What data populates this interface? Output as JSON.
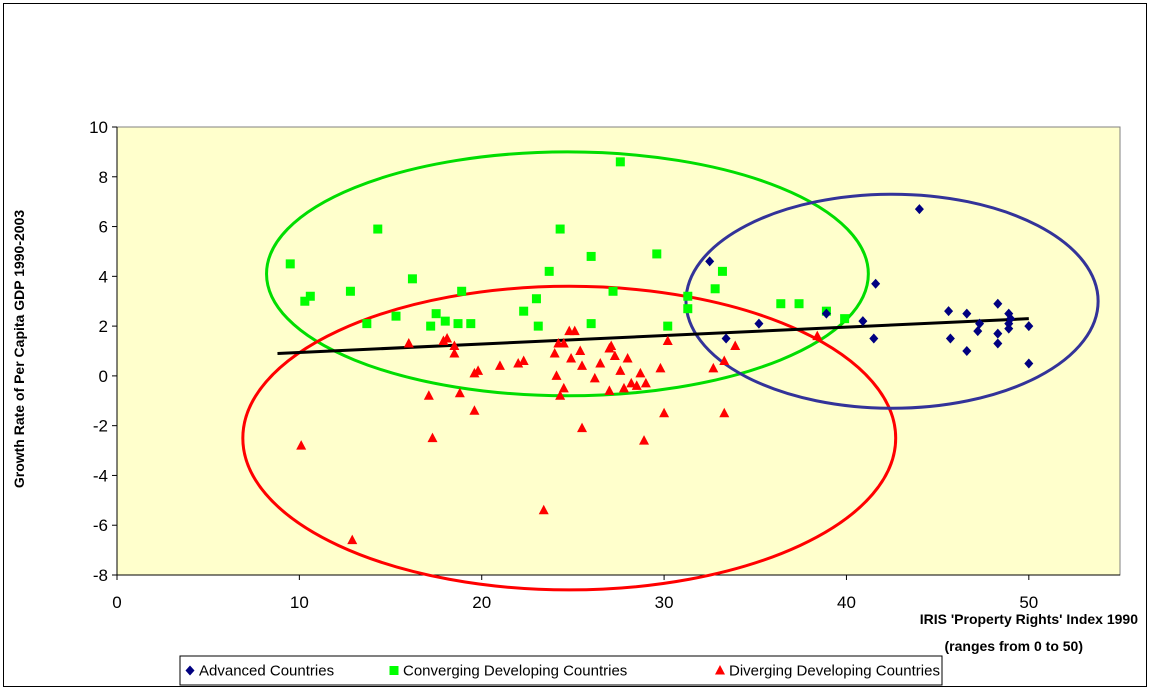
{
  "chart_data": {
    "type": "scatter",
    "title": "",
    "xlabel_lines": [
      "IRIS 'Property Rights' Index 1990",
      "(ranges from 0 to 50)"
    ],
    "ylabel": "Growth Rate of Per Capita GDP 1990-2003",
    "xlim": [
      0,
      55
    ],
    "ylim": [
      -8,
      10
    ],
    "x_ticks": [
      0,
      10,
      20,
      30,
      40,
      50
    ],
    "y_ticks": [
      -8,
      -6,
      -4,
      -2,
      0,
      2,
      4,
      6,
      8,
      10
    ],
    "plot_background": "#FFFFCC",
    "grid": false,
    "legend_position": "bottom",
    "series": [
      {
        "name": "Advanced Countries",
        "marker": "diamond",
        "color": "#000080",
        "points": [
          [
            32.5,
            4.6
          ],
          [
            33.4,
            1.5
          ],
          [
            35.2,
            2.1
          ],
          [
            38.9,
            2.5
          ],
          [
            40.9,
            2.2
          ],
          [
            41.5,
            1.5
          ],
          [
            41.6,
            3.7
          ],
          [
            44.0,
            6.7
          ],
          [
            45.6,
            2.6
          ],
          [
            45.7,
            1.5
          ],
          [
            46.6,
            2.5
          ],
          [
            46.6,
            1.0
          ],
          [
            47.2,
            1.8
          ],
          [
            47.3,
            2.1
          ],
          [
            48.3,
            1.3
          ],
          [
            48.3,
            1.7
          ],
          [
            48.3,
            2.9
          ],
          [
            48.9,
            2.5
          ],
          [
            48.9,
            1.9
          ],
          [
            48.9,
            2.1
          ],
          [
            49.0,
            2.3
          ],
          [
            50.0,
            2.0
          ],
          [
            50.0,
            0.5
          ]
        ]
      },
      {
        "name": "Converging Developing Countries",
        "marker": "square",
        "color": "#00FF00",
        "points": [
          [
            9.5,
            4.5
          ],
          [
            10.3,
            3.0
          ],
          [
            10.6,
            3.2
          ],
          [
            12.8,
            3.4
          ],
          [
            13.7,
            2.1
          ],
          [
            14.3,
            5.9
          ],
          [
            15.3,
            2.4
          ],
          [
            16.2,
            3.9
          ],
          [
            17.2,
            2.0
          ],
          [
            17.5,
            2.5
          ],
          [
            18.0,
            2.2
          ],
          [
            18.7,
            2.1
          ],
          [
            18.9,
            3.4
          ],
          [
            19.4,
            2.1
          ],
          [
            22.3,
            2.6
          ],
          [
            23.0,
            3.1
          ],
          [
            23.1,
            2.0
          ],
          [
            23.7,
            4.2
          ],
          [
            24.3,
            5.9
          ],
          [
            26.0,
            4.8
          ],
          [
            26.0,
            2.1
          ],
          [
            27.2,
            3.4
          ],
          [
            27.6,
            8.6
          ],
          [
            29.6,
            4.9
          ],
          [
            30.2,
            2.0
          ],
          [
            31.3,
            3.2
          ],
          [
            31.3,
            2.7
          ],
          [
            32.8,
            3.5
          ],
          [
            33.2,
            4.2
          ],
          [
            36.4,
            2.9
          ],
          [
            37.4,
            2.9
          ],
          [
            38.9,
            2.6
          ],
          [
            39.9,
            2.3
          ]
        ]
      },
      {
        "name": "Diverging Developing Countries",
        "marker": "triangle",
        "color": "#FF0000",
        "points": [
          [
            10.1,
            -2.8
          ],
          [
            12.9,
            -6.6
          ],
          [
            16.0,
            1.3
          ],
          [
            17.1,
            -0.8
          ],
          [
            17.3,
            -2.5
          ],
          [
            17.9,
            1.4
          ],
          [
            18.1,
            1.5
          ],
          [
            18.5,
            1.2
          ],
          [
            18.5,
            0.9
          ],
          [
            18.8,
            -0.7
          ],
          [
            19.6,
            0.1
          ],
          [
            19.6,
            -1.4
          ],
          [
            19.8,
            0.2
          ],
          [
            21.0,
            0.4
          ],
          [
            22.0,
            0.5
          ],
          [
            22.3,
            0.6
          ],
          [
            23.4,
            -5.4
          ],
          [
            24.0,
            0.9
          ],
          [
            24.1,
            0.0
          ],
          [
            24.2,
            1.3
          ],
          [
            24.3,
            -0.8
          ],
          [
            24.5,
            1.3
          ],
          [
            24.5,
            -0.5
          ],
          [
            24.8,
            1.8
          ],
          [
            24.9,
            0.7
          ],
          [
            25.1,
            1.8
          ],
          [
            25.4,
            1.0
          ],
          [
            25.5,
            0.4
          ],
          [
            25.5,
            -2.1
          ],
          [
            26.2,
            -0.1
          ],
          [
            26.5,
            0.5
          ],
          [
            27.0,
            -0.6
          ],
          [
            27.0,
            1.1
          ],
          [
            27.1,
            1.2
          ],
          [
            27.3,
            0.8
          ],
          [
            27.6,
            0.2
          ],
          [
            27.8,
            -0.5
          ],
          [
            28.0,
            0.7
          ],
          [
            28.2,
            -0.3
          ],
          [
            28.5,
            -0.4
          ],
          [
            28.7,
            0.1
          ],
          [
            28.9,
            -2.6
          ],
          [
            29.0,
            -0.3
          ],
          [
            29.8,
            0.3
          ],
          [
            30.0,
            -1.5
          ],
          [
            30.2,
            1.4
          ],
          [
            32.7,
            0.3
          ],
          [
            33.3,
            0.6
          ],
          [
            33.3,
            -1.5
          ],
          [
            33.9,
            1.2
          ],
          [
            38.4,
            1.6
          ]
        ]
      }
    ],
    "trendline": {
      "color": "#000000",
      "from": [
        8.8,
        0.9
      ],
      "to": [
        50.0,
        2.3
      ]
    },
    "ellipses": [
      {
        "color": "#00DD00",
        "cx": 24.7,
        "cy": 4.1,
        "rx": 16.5,
        "ry": 4.9
      },
      {
        "color": "#FF0000",
        "cx": 24.8,
        "cy": -2.5,
        "rx": 17.9,
        "ry": 6.1
      },
      {
        "color": "#333399",
        "cx": 42.5,
        "cy": 3.0,
        "rx": 11.3,
        "ry": 4.3
      }
    ]
  }
}
